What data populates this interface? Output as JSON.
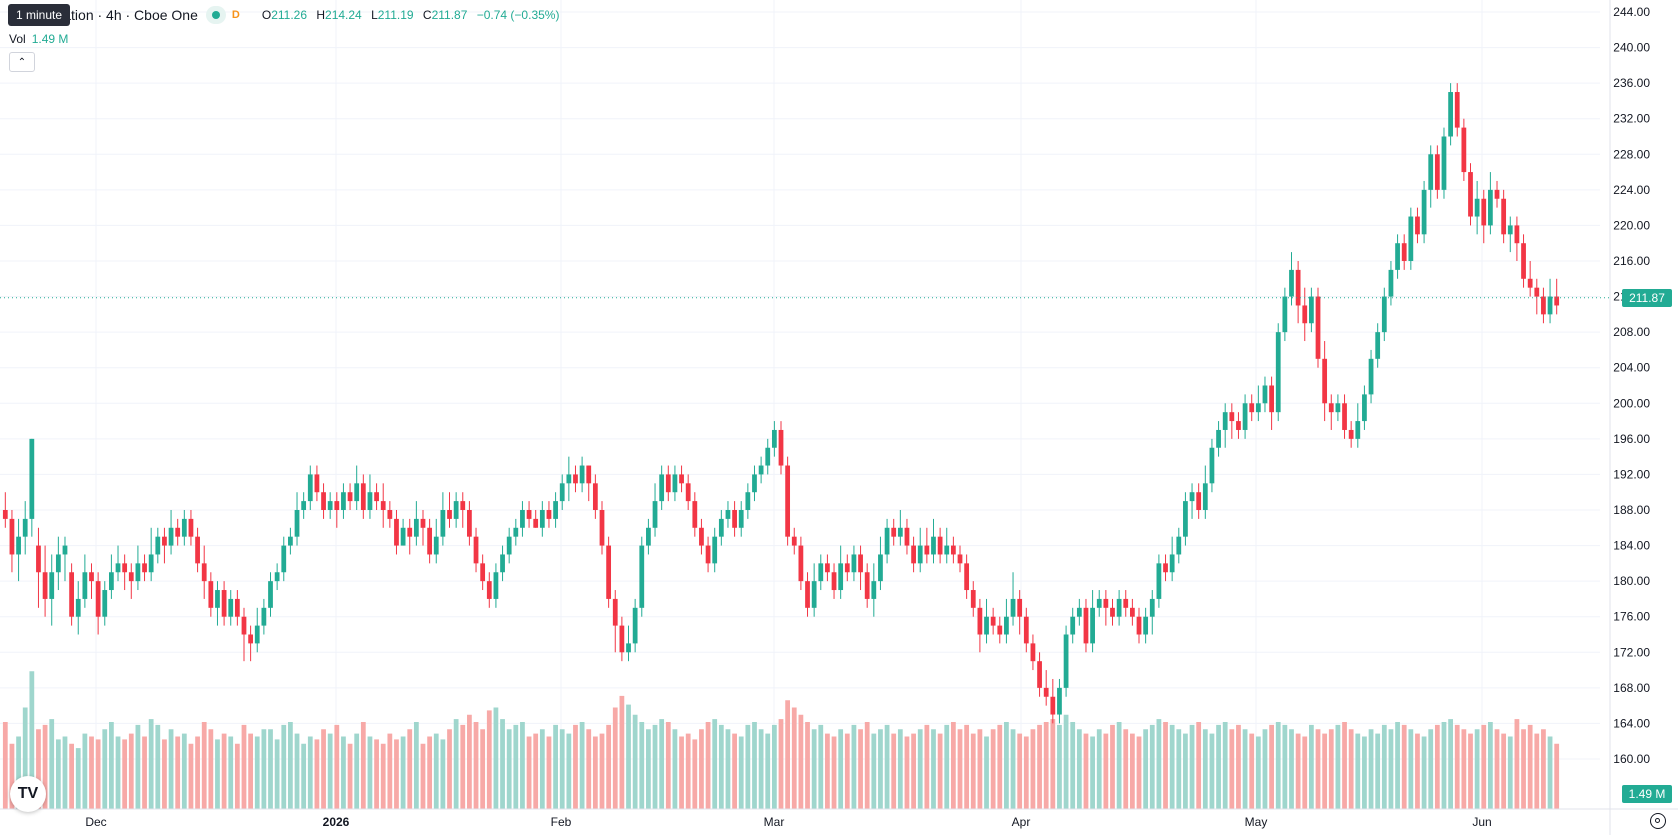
{
  "legend": {
    "symbol_title": "A Corporation · 4h · Cboe One",
    "interval_badge": "D",
    "open_label": "O",
    "open": "211.26",
    "high_label": "H",
    "high": "214.24",
    "low_label": "L",
    "low": "211.19",
    "close_label": "C",
    "close": "211.87",
    "change": "−0.74 (−0.35%)"
  },
  "tooltip": "1 minute",
  "volume_legend": {
    "label": "Vol",
    "value": "1.49 M"
  },
  "last_price_tag": "211.87",
  "last_volume_tag": "1.49 M",
  "colors": {
    "up": "#22ab94",
    "down": "#f23645",
    "up_volume": "#9fd6cd",
    "down_volume": "#f7a9a7",
    "grid": "#f0f3fa"
  },
  "icons": {
    "logo": "tradingview-logo-icon",
    "collapse": "chevron-up-icon",
    "settings": "gear-icon"
  },
  "chart_data": {
    "type": "candlestick",
    "interval": "4h",
    "y_axis": {
      "min": 160,
      "max": 244,
      "ticks": [
        "244.00",
        "240.00",
        "236.00",
        "232.00",
        "228.00",
        "224.00",
        "220.00",
        "216.00",
        "212.00",
        "208.00",
        "204.00",
        "200.00",
        "196.00",
        "192.00",
        "188.00",
        "184.00",
        "180.00",
        "176.00",
        "172.00",
        "168.00",
        "164.00",
        "160.00"
      ]
    },
    "x_axis": {
      "labels": [
        "Dec",
        "2026",
        "Feb",
        "Mar",
        "Apr",
        "May",
        "Jun"
      ]
    },
    "last_price": 211.87,
    "candles": [
      [
        188,
        187,
        190,
        186
      ],
      [
        187,
        183,
        188,
        181
      ],
      [
        183,
        185,
        187,
        180
      ],
      [
        185,
        187,
        189,
        183
      ],
      [
        187,
        196,
        196,
        185
      ],
      [
        184,
        181,
        186,
        177
      ],
      [
        181,
        178,
        184,
        176
      ],
      [
        178,
        181,
        183,
        175
      ],
      [
        181,
        183,
        185,
        179
      ],
      [
        183,
        184,
        185,
        180
      ],
      [
        181,
        176,
        182,
        175
      ],
      [
        176,
        178,
        180,
        174
      ],
      [
        178,
        181,
        183,
        177
      ],
      [
        181,
        180,
        182,
        178
      ],
      [
        180,
        176,
        181,
        174
      ],
      [
        176,
        179,
        180,
        175
      ],
      [
        179,
        181,
        183,
        178
      ],
      [
        181,
        182,
        184,
        180
      ],
      [
        182,
        181,
        183,
        179
      ],
      [
        181,
        180,
        182,
        178
      ],
      [
        180,
        182,
        184,
        179
      ],
      [
        182,
        181,
        183,
        180
      ],
      [
        181,
        183,
        186,
        180
      ],
      [
        183,
        185,
        186,
        182
      ],
      [
        185,
        184,
        186,
        182
      ],
      [
        184,
        186,
        188,
        183
      ],
      [
        186,
        185,
        187,
        184
      ],
      [
        185,
        187,
        188,
        184
      ],
      [
        187,
        185,
        188,
        184
      ],
      [
        185,
        182,
        186,
        181
      ],
      [
        182,
        180,
        184,
        178
      ],
      [
        180,
        177,
        181,
        176
      ],
      [
        177,
        179,
        180,
        175
      ],
      [
        179,
        176,
        180,
        175
      ],
      [
        176,
        178,
        179,
        175
      ],
      [
        178,
        176,
        179,
        175
      ],
      [
        176,
        174,
        177,
        171
      ],
      [
        174,
        173,
        175,
        171
      ],
      [
        173,
        175,
        177,
        172
      ],
      [
        175,
        177,
        178,
        174
      ],
      [
        177,
        180,
        181,
        176
      ],
      [
        180,
        181,
        182,
        179
      ],
      [
        181,
        184,
        185,
        180
      ],
      [
        184,
        185,
        186,
        183
      ],
      [
        185,
        188,
        190,
        184
      ],
      [
        188,
        189,
        190,
        187
      ],
      [
        189,
        192,
        193,
        188
      ],
      [
        192,
        190,
        193,
        189
      ],
      [
        190,
        188,
        191,
        187
      ],
      [
        188,
        189,
        190,
        187
      ],
      [
        189,
        188,
        190,
        186
      ],
      [
        188,
        190,
        191,
        187
      ],
      [
        190,
        189,
        191,
        188
      ],
      [
        189,
        191,
        193,
        188
      ],
      [
        191,
        188,
        192,
        187
      ],
      [
        188,
        190,
        192,
        187
      ],
      [
        190,
        189,
        191,
        188
      ],
      [
        189,
        188,
        191,
        186
      ],
      [
        188,
        187,
        189,
        186
      ],
      [
        187,
        184,
        188,
        183
      ],
      [
        184,
        186,
        187,
        184
      ],
      [
        186,
        185,
        187,
        183
      ],
      [
        185,
        187,
        189,
        184
      ],
      [
        187,
        186,
        188,
        184
      ],
      [
        186,
        183,
        187,
        182
      ],
      [
        183,
        185,
        187,
        182
      ],
      [
        185,
        188,
        190,
        184
      ],
      [
        188,
        187,
        190,
        186
      ],
      [
        187,
        189,
        190,
        186
      ],
      [
        189,
        188,
        190,
        186
      ],
      [
        188,
        185,
        189,
        184
      ],
      [
        185,
        182,
        186,
        181
      ],
      [
        182,
        180,
        183,
        179
      ],
      [
        180,
        178,
        181,
        177
      ],
      [
        178,
        181,
        182,
        177
      ],
      [
        181,
        183,
        184,
        180
      ],
      [
        183,
        185,
        186,
        182
      ],
      [
        185,
        186,
        187,
        184
      ],
      [
        186,
        188,
        189,
        185
      ],
      [
        188,
        187,
        189,
        186
      ],
      [
        187,
        186,
        188,
        186
      ],
      [
        186,
        188,
        189,
        185
      ],
      [
        188,
        187,
        189,
        186
      ],
      [
        187,
        189,
        190,
        186
      ],
      [
        189,
        191,
        192,
        188
      ],
      [
        191,
        192,
        194,
        189
      ],
      [
        192,
        191,
        193,
        190
      ],
      [
        191,
        193,
        194,
        190
      ],
      [
        193,
        191,
        193,
        189
      ],
      [
        191,
        188,
        192,
        187
      ],
      [
        188,
        184,
        189,
        183
      ],
      [
        184,
        178,
        185,
        177
      ],
      [
        178,
        175,
        179,
        172
      ],
      [
        175,
        172,
        176,
        171
      ],
      [
        172,
        173,
        175,
        171
      ],
      [
        173,
        177,
        178,
        172
      ],
      [
        177,
        184,
        185,
        176
      ],
      [
        184,
        186,
        187,
        183
      ],
      [
        186,
        189,
        191,
        185
      ],
      [
        189,
        192,
        193,
        188
      ],
      [
        192,
        190,
        193,
        189
      ],
      [
        190,
        192,
        193,
        189
      ],
      [
        192,
        191,
        193,
        190
      ],
      [
        191,
        189,
        192,
        188
      ],
      [
        189,
        186,
        190,
        185
      ],
      [
        186,
        184,
        187,
        183
      ],
      [
        184,
        182,
        185,
        181
      ],
      [
        182,
        185,
        186,
        181
      ],
      [
        185,
        187,
        188,
        184
      ],
      [
        187,
        188,
        189,
        186
      ],
      [
        188,
        186,
        189,
        185
      ],
      [
        186,
        188,
        189,
        185
      ],
      [
        188,
        190,
        191,
        187
      ],
      [
        190,
        192,
        193,
        189
      ],
      [
        192,
        193,
        194,
        191
      ],
      [
        193,
        195,
        196,
        192
      ],
      [
        195,
        197,
        198,
        194
      ],
      [
        197,
        193,
        198,
        192
      ],
      [
        193,
        185,
        194,
        184
      ],
      [
        185,
        184,
        186,
        183
      ],
      [
        184,
        180,
        185,
        179
      ],
      [
        180,
        177,
        181,
        176
      ],
      [
        177,
        180,
        182,
        176
      ],
      [
        180,
        182,
        183,
        179
      ],
      [
        182,
        181,
        183,
        180
      ],
      [
        181,
        179,
        182,
        178
      ],
      [
        179,
        182,
        184,
        178
      ],
      [
        182,
        181,
        183,
        180
      ],
      [
        181,
        183,
        184,
        180
      ],
      [
        183,
        181,
        184,
        179
      ],
      [
        181,
        178,
        182,
        177
      ],
      [
        178,
        180,
        182,
        176
      ],
      [
        180,
        183,
        185,
        179
      ],
      [
        183,
        186,
        187,
        182
      ],
      [
        186,
        185,
        187,
        184
      ],
      [
        185,
        186,
        188,
        184
      ],
      [
        186,
        184,
        187,
        183
      ],
      [
        184,
        182,
        185,
        181
      ],
      [
        182,
        184,
        186,
        181
      ],
      [
        184,
        183,
        186,
        182
      ],
      [
        183,
        185,
        187,
        182
      ],
      [
        185,
        183,
        186,
        182
      ],
      [
        183,
        184,
        186,
        182
      ],
      [
        184,
        183,
        185,
        182
      ],
      [
        183,
        182,
        184,
        181
      ],
      [
        182,
        179,
        183,
        178
      ],
      [
        179,
        177,
        180,
        176
      ],
      [
        177,
        174,
        178,
        172
      ],
      [
        174,
        176,
        178,
        173
      ],
      [
        176,
        175,
        177,
        174
      ],
      [
        175,
        174,
        176,
        173
      ],
      [
        174,
        176,
        178,
        173
      ],
      [
        176,
        178,
        181,
        175
      ],
      [
        178,
        176,
        179,
        174
      ],
      [
        176,
        173,
        177,
        172
      ],
      [
        173,
        171,
        174,
        170
      ],
      [
        171,
        168,
        172,
        167
      ],
      [
        168,
        167,
        170,
        166
      ],
      [
        167,
        165,
        169,
        164
      ],
      [
        165,
        168,
        169,
        164
      ],
      [
        168,
        174,
        175,
        167
      ],
      [
        174,
        176,
        177,
        173
      ],
      [
        176,
        177,
        178,
        175
      ],
      [
        177,
        173,
        178,
        172
      ],
      [
        173,
        177,
        179,
        172
      ],
      [
        177,
        178,
        179,
        176
      ],
      [
        178,
        177,
        179,
        175
      ],
      [
        177,
        176,
        178,
        175
      ],
      [
        176,
        178,
        179,
        175
      ],
      [
        178,
        177,
        179,
        176
      ],
      [
        177,
        176,
        178,
        175
      ],
      [
        176,
        174,
        177,
        173
      ],
      [
        174,
        176,
        177,
        173
      ],
      [
        176,
        178,
        179,
        174
      ],
      [
        178,
        182,
        183,
        177
      ],
      [
        182,
        181,
        183,
        180
      ],
      [
        181,
        183,
        185,
        180
      ],
      [
        183,
        185,
        186,
        182
      ],
      [
        185,
        189,
        190,
        184
      ],
      [
        189,
        190,
        191,
        187
      ],
      [
        190,
        188,
        191,
        187
      ],
      [
        188,
        191,
        193,
        187
      ],
      [
        191,
        195,
        196,
        190
      ],
      [
        195,
        197,
        198,
        194
      ],
      [
        197,
        199,
        200,
        195
      ],
      [
        199,
        198,
        200,
        196
      ],
      [
        198,
        197,
        199,
        196
      ],
      [
        197,
        200,
        201,
        196
      ],
      [
        200,
        199,
        201,
        198
      ],
      [
        199,
        200,
        202,
        198
      ],
      [
        200,
        202,
        203,
        199
      ],
      [
        202,
        199,
        203,
        197
      ],
      [
        199,
        208,
        209,
        198
      ],
      [
        208,
        212,
        213,
        207
      ],
      [
        212,
        215,
        217,
        211
      ],
      [
        215,
        211,
        216,
        209
      ],
      [
        211,
        209,
        213,
        207
      ],
      [
        209,
        212,
        213,
        208
      ],
      [
        212,
        205,
        213,
        204
      ],
      [
        205,
        200,
        207,
        198
      ],
      [
        200,
        199,
        201,
        197
      ],
      [
        199,
        200,
        201,
        198
      ],
      [
        200,
        197,
        201,
        196
      ],
      [
        197,
        196,
        198,
        195
      ],
      [
        196,
        198,
        200,
        195
      ],
      [
        198,
        201,
        202,
        197
      ],
      [
        201,
        205,
        206,
        200
      ],
      [
        205,
        208,
        209,
        204
      ],
      [
        208,
        212,
        213,
        207
      ],
      [
        212,
        215,
        216,
        211
      ],
      [
        215,
        218,
        219,
        214
      ],
      [
        218,
        216,
        219,
        215
      ],
      [
        216,
        221,
        222,
        215
      ],
      [
        221,
        219,
        222,
        218
      ],
      [
        219,
        224,
        225,
        218
      ],
      [
        224,
        228,
        229,
        222
      ],
      [
        228,
        224,
        229,
        223
      ],
      [
        224,
        230,
        231,
        223
      ],
      [
        230,
        235,
        236,
        229
      ],
      [
        235,
        231,
        236,
        230
      ],
      [
        231,
        226,
        232,
        225
      ],
      [
        226,
        221,
        227,
        220
      ],
      [
        221,
        223,
        225,
        219
      ],
      [
        223,
        220,
        224,
        218
      ],
      [
        220,
        224,
        226,
        219
      ],
      [
        224,
        223,
        225,
        222
      ],
      [
        223,
        219,
        224,
        218
      ],
      [
        219,
        220,
        221,
        217
      ],
      [
        220,
        218,
        221,
        216
      ],
      [
        218,
        214,
        219,
        213
      ],
      [
        214,
        213,
        216,
        212
      ],
      [
        213,
        212,
        214,
        210
      ],
      [
        212,
        210,
        213,
        209
      ],
      [
        210,
        212,
        214,
        209
      ],
      [
        212,
        211,
        214,
        210
      ]
    ],
    "volume": [
      60,
      45,
      50,
      70,
      95,
      55,
      58,
      62,
      48,
      50,
      45,
      42,
      52,
      50,
      48,
      55,
      60,
      50,
      48,
      52,
      58,
      50,
      62,
      58,
      48,
      55,
      50,
      52,
      45,
      50,
      60,
      55,
      48,
      52,
      50,
      45,
      58,
      52,
      50,
      55,
      55,
      48,
      58,
      60,
      52,
      45,
      50,
      48,
      55,
      52,
      58,
      50,
      45,
      52,
      60,
      50,
      48,
      45,
      52,
      48,
      50,
      55,
      60,
      45,
      50,
      52,
      48,
      55,
      62,
      58,
      65,
      60,
      55,
      68,
      70,
      62,
      55,
      58,
      60,
      50,
      52,
      55,
      50,
      58,
      55,
      52,
      58,
      60,
      55,
      50,
      52,
      58,
      70,
      78,
      72,
      65,
      60,
      55,
      58,
      62,
      60,
      55,
      50,
      52,
      48,
      55,
      60,
      62,
      58,
      55,
      52,
      50,
      58,
      60,
      55,
      52,
      58,
      62,
      75,
      70,
      65,
      60,
      55,
      58,
      52,
      50,
      55,
      52,
      58,
      55,
      60,
      52,
      55,
      58,
      52,
      55,
      50,
      52,
      55,
      58,
      55,
      52,
      58,
      60,
      55,
      58,
      52,
      55,
      50,
      55,
      58,
      60,
      55,
      52,
      50,
      55,
      58,
      60,
      62,
      58,
      65,
      60,
      55,
      52,
      50,
      55,
      52,
      58,
      60,
      55,
      52,
      50,
      55,
      58,
      62,
      60,
      58,
      55,
      52,
      58,
      60,
      55,
      52,
      58,
      60,
      55,
      58,
      55,
      52,
      50,
      55,
      58,
      60,
      58,
      55,
      52,
      50,
      58,
      55,
      52,
      55,
      58,
      60,
      55,
      52,
      50,
      55,
      52,
      58,
      55,
      60,
      58,
      55,
      52,
      50,
      55,
      58,
      60,
      62,
      58,
      55,
      52,
      55,
      58,
      60,
      55,
      52,
      50,
      62,
      55,
      58,
      52,
      55,
      50,
      45
    ]
  }
}
